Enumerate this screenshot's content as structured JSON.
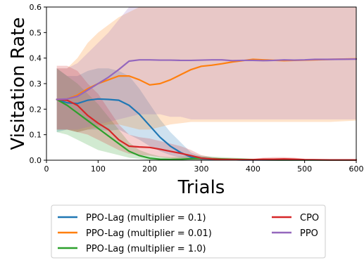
{
  "chart_data": {
    "type": "line",
    "xlabel": "Trials",
    "ylabel": "Visitation Rate",
    "xlim": [
      0,
      600
    ],
    "ylim": [
      0.0,
      0.6
    ],
    "xticks": [
      "0",
      "100",
      "200",
      "300",
      "400",
      "500",
      "600"
    ],
    "yticks": [
      "0.0",
      "0.1",
      "0.2",
      "0.3",
      "0.4",
      "0.5",
      "0.6"
    ],
    "grid": false,
    "legend_position": "below",
    "series": [
      {
        "name": "PPO-Lag (multiplier = 0.1)",
        "color": "#1f77b4",
        "x": [
          20,
          40,
          60,
          80,
          100,
          120,
          140,
          160,
          180,
          200,
          220,
          240,
          260,
          280,
          300,
          320,
          340,
          360,
          380,
          400,
          450,
          500,
          550,
          600
        ],
        "y": [
          0.238,
          0.225,
          0.222,
          0.235,
          0.24,
          0.238,
          0.235,
          0.215,
          0.18,
          0.135,
          0.09,
          0.055,
          0.03,
          0.012,
          0.006,
          0.004,
          0.003,
          0.002,
          0.001,
          0.001,
          0.001,
          0.001,
          0.001,
          0.001
        ],
        "band_lower": [
          0.11,
          0.12,
          0.11,
          0.12,
          0.12,
          0.115,
          0.12,
          0.1,
          0.08,
          0.055,
          0.035,
          0.02,
          0.01,
          0.005,
          0.0,
          0.0,
          0.0,
          0.0,
          0.0,
          0.0,
          0.0,
          0.0,
          0.0,
          0.0
        ],
        "band_upper": [
          0.36,
          0.33,
          0.33,
          0.35,
          0.36,
          0.36,
          0.35,
          0.33,
          0.28,
          0.22,
          0.16,
          0.11,
          0.07,
          0.03,
          0.015,
          0.01,
          0.008,
          0.005,
          0.003,
          0.002,
          0.002,
          0.002,
          0.002,
          0.002
        ]
      },
      {
        "name": "PPO-Lag (multiplier = 0.01)",
        "color": "#ff7f0e",
        "x": [
          20,
          40,
          60,
          80,
          100,
          120,
          140,
          160,
          180,
          200,
          220,
          240,
          260,
          280,
          300,
          320,
          340,
          360,
          380,
          400,
          420,
          460,
          500,
          550,
          600
        ],
        "y": [
          0.238,
          0.24,
          0.255,
          0.28,
          0.3,
          0.315,
          0.33,
          0.33,
          0.315,
          0.295,
          0.3,
          0.315,
          0.335,
          0.355,
          0.368,
          0.372,
          0.378,
          0.385,
          0.39,
          0.395,
          0.393,
          0.39,
          0.392,
          0.395,
          0.397
        ],
        "band_lower": [
          0.12,
          0.12,
          0.11,
          0.12,
          0.13,
          0.14,
          0.14,
          0.13,
          0.12,
          0.12,
          0.13,
          0.14,
          0.145,
          0.15,
          0.15,
          0.15,
          0.15,
          0.15,
          0.15,
          0.15,
          0.15,
          0.15,
          0.15,
          0.15,
          0.155
        ],
        "band_upper": [
          0.36,
          0.36,
          0.4,
          0.46,
          0.5,
          0.53,
          0.56,
          0.58,
          0.6,
          0.6,
          0.6,
          0.6,
          0.6,
          0.6,
          0.6,
          0.6,
          0.6,
          0.6,
          0.6,
          0.6,
          0.6,
          0.6,
          0.6,
          0.6,
          0.6
        ]
      },
      {
        "name": "PPO-Lag (multiplier = 1.0)",
        "color": "#2ca02c",
        "x": [
          20,
          40,
          60,
          80,
          100,
          120,
          140,
          160,
          180,
          200,
          220,
          240,
          260,
          280,
          300,
          320,
          340,
          360,
          380,
          400,
          450,
          500,
          550,
          600
        ],
        "y": [
          0.238,
          0.215,
          0.185,
          0.155,
          0.125,
          0.095,
          0.065,
          0.035,
          0.018,
          0.008,
          0.004,
          0.003,
          0.004,
          0.006,
          0.008,
          0.006,
          0.005,
          0.004,
          0.003,
          0.002,
          0.001,
          0.001,
          0.001,
          0.001
        ],
        "band_lower": [
          0.11,
          0.1,
          0.08,
          0.06,
          0.04,
          0.03,
          0.02,
          0.01,
          0.005,
          0.0,
          0.0,
          0.0,
          0.0,
          0.0,
          0.0,
          0.0,
          0.0,
          0.0,
          0.0,
          0.0,
          0.0,
          0.0,
          0.0,
          0.0
        ],
        "band_upper": [
          0.36,
          0.33,
          0.3,
          0.26,
          0.22,
          0.17,
          0.12,
          0.07,
          0.04,
          0.025,
          0.015,
          0.012,
          0.014,
          0.016,
          0.018,
          0.014,
          0.012,
          0.01,
          0.008,
          0.006,
          0.004,
          0.003,
          0.002,
          0.002
        ]
      },
      {
        "name": "CPO",
        "color": "#d62728",
        "x": [
          20,
          40,
          60,
          80,
          100,
          120,
          140,
          160,
          180,
          200,
          220,
          240,
          260,
          280,
          300,
          320,
          340,
          360,
          380,
          400,
          420,
          440,
          460,
          480,
          500,
          550,
          600
        ],
        "y": [
          0.238,
          0.235,
          0.215,
          0.175,
          0.145,
          0.12,
          0.08,
          0.055,
          0.052,
          0.05,
          0.043,
          0.035,
          0.027,
          0.018,
          0.008,
          0.005,
          0.003,
          0.003,
          0.002,
          0.002,
          0.004,
          0.004,
          0.005,
          0.004,
          0.002,
          0.001,
          0.001
        ],
        "band_lower": [
          0.12,
          0.12,
          0.11,
          0.1,
          0.08,
          0.06,
          0.04,
          0.025,
          0.02,
          0.018,
          0.012,
          0.008,
          0.004,
          0.002,
          0.0,
          0.0,
          0.0,
          0.0,
          0.0,
          0.0,
          0.0,
          0.0,
          0.0,
          0.0,
          0.0,
          0.0,
          0.0
        ],
        "band_upper": [
          0.37,
          0.37,
          0.35,
          0.3,
          0.26,
          0.2,
          0.14,
          0.1,
          0.09,
          0.085,
          0.075,
          0.065,
          0.055,
          0.04,
          0.02,
          0.012,
          0.008,
          0.007,
          0.006,
          0.006,
          0.01,
          0.012,
          0.012,
          0.01,
          0.006,
          0.003,
          0.002
        ]
      },
      {
        "name": "PPO",
        "color": "#9467bd",
        "x": [
          20,
          40,
          60,
          80,
          100,
          120,
          140,
          160,
          180,
          200,
          220,
          240,
          260,
          280,
          300,
          320,
          340,
          360,
          380,
          400,
          420,
          440,
          460,
          480,
          500,
          520,
          550,
          600
        ],
        "y": [
          0.238,
          0.24,
          0.25,
          0.275,
          0.3,
          0.325,
          0.355,
          0.388,
          0.393,
          0.393,
          0.392,
          0.392,
          0.391,
          0.391,
          0.392,
          0.393,
          0.393,
          0.39,
          0.391,
          0.391,
          0.39,
          0.391,
          0.393,
          0.392,
          0.393,
          0.395,
          0.395,
          0.396
        ],
        "band_lower": [
          0.12,
          0.12,
          0.12,
          0.13,
          0.14,
          0.15,
          0.16,
          0.17,
          0.18,
          0.18,
          0.18,
          0.17,
          0.17,
          0.16,
          0.16,
          0.16,
          0.16,
          0.16,
          0.16,
          0.16,
          0.16,
          0.16,
          0.16,
          0.16,
          0.16,
          0.16,
          0.16,
          0.16
        ],
        "band_upper": [
          0.36,
          0.36,
          0.38,
          0.42,
          0.46,
          0.5,
          0.55,
          0.6,
          0.6,
          0.6,
          0.6,
          0.6,
          0.6,
          0.6,
          0.6,
          0.6,
          0.6,
          0.6,
          0.6,
          0.6,
          0.6,
          0.6,
          0.6,
          0.6,
          0.6,
          0.6,
          0.6,
          0.6
        ]
      }
    ]
  }
}
